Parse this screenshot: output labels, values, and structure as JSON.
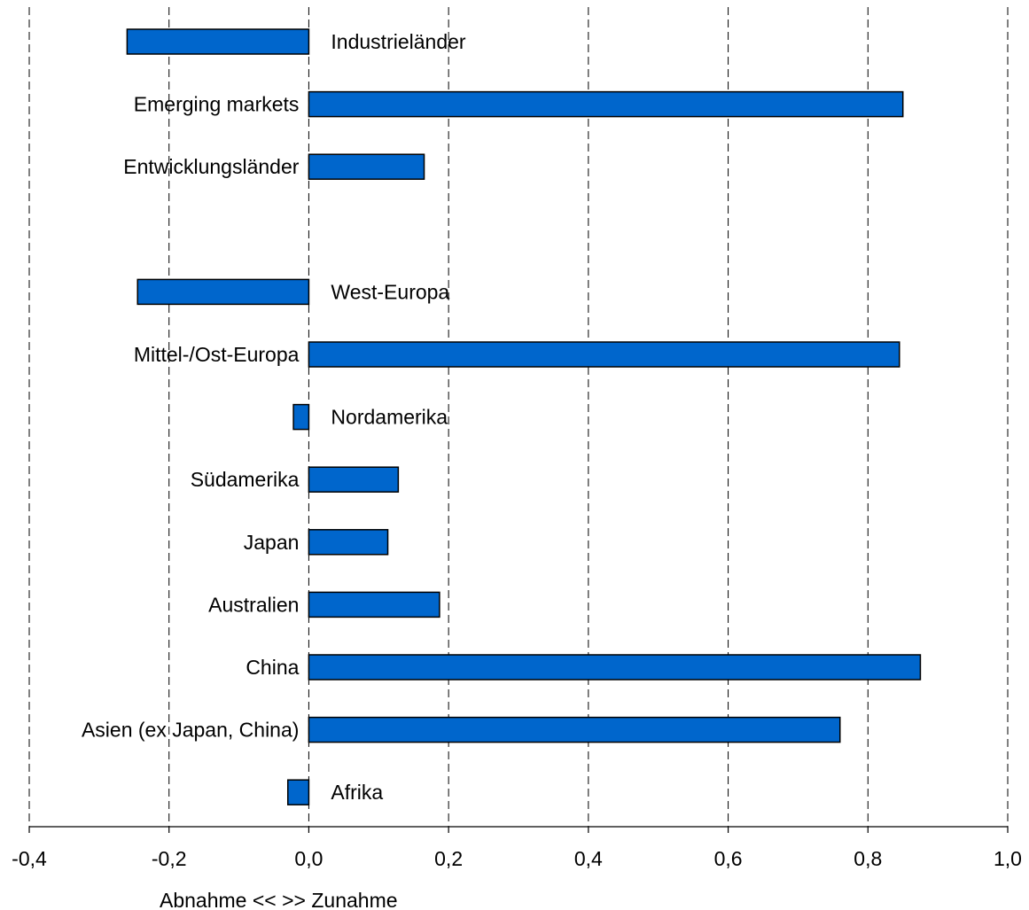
{
  "chart_data": {
    "type": "bar",
    "orientation": "horizontal",
    "title": "",
    "xlabel": "Abnahme <<  >> Zunahme",
    "ylabel": "",
    "xlim": [
      -0.4,
      1.0
    ],
    "xticks": [
      -0.4,
      -0.2,
      0.0,
      0.2,
      0.4,
      0.6,
      0.8,
      1.0
    ],
    "xtick_labels": [
      "-0,4",
      "-0,2",
      "0,0",
      "0,2",
      "0,4",
      "0,6",
      "0,8",
      "1,0"
    ],
    "grid": "vertical dashed",
    "legend": "none",
    "bar_color": "#0066CC",
    "categories": [
      "Industrieländer",
      "Emerging markets",
      "Entwicklungsländer",
      "",
      "West-Europa",
      "Mittel-/Ost-Europa",
      "Nordamerika",
      "Südamerika",
      "Japan",
      "Australien",
      "China",
      "Asien (ex Japan, China)",
      "Afrika"
    ],
    "values": [
      -0.26,
      0.85,
      0.165,
      null,
      -0.245,
      0.845,
      -0.022,
      0.128,
      0.113,
      0.187,
      0.875,
      0.76,
      -0.03
    ]
  }
}
